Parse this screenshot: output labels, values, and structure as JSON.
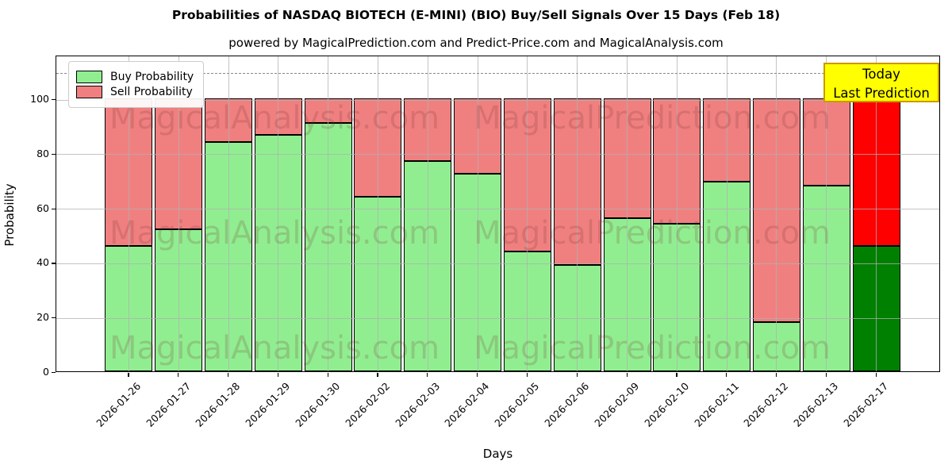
{
  "title": "Probabilities of NASDAQ BIOTECH (E-MINI) (BIO) Buy/Sell Signals Over 15 Days (Feb 18)",
  "subtitle": "powered by MagicalPrediction.com and Predict-Price.com and MagicalAnalysis.com",
  "legend": {
    "items": [
      {
        "label": "Buy Probability",
        "color": "#90EE90"
      },
      {
        "label": "Sell Probability",
        "color": "#F08080"
      }
    ]
  },
  "annotation_box": {
    "line1": "Today",
    "line2": "Last Prediction",
    "bg": "#FFFF00",
    "border": "#CC9900"
  },
  "watermarks": {
    "left_text": "MagicalAnalysis.com",
    "right_text": "MagicalPrediction.com"
  },
  "axes": {
    "ylabel": "Probability",
    "xlabel": "Days",
    "yticks": [
      0,
      20,
      40,
      60,
      80,
      100
    ],
    "ylim": [
      0,
      116
    ],
    "dashed_line_y": 110,
    "grid": true
  },
  "chart_data": {
    "type": "bar",
    "stacked": true,
    "title": "Probabilities of NASDAQ BIOTECH (E-MINI) (BIO) Buy/Sell Signals Over 15 Days (Feb 18)",
    "xlabel": "Days",
    "ylabel": "Probability",
    "ylim": [
      0,
      116
    ],
    "legend_position": "upper left",
    "categories": [
      "2026-01-26",
      "2026-01-27",
      "2026-01-28",
      "2026-01-29",
      "2026-01-30",
      "2026-02-02",
      "2026-02-03",
      "2026-02-04",
      "2026-02-05",
      "2026-02-06",
      "2026-02-09",
      "2026-02-10",
      "2026-02-11",
      "2026-02-12",
      "2026-02-13",
      "2026-02-17"
    ],
    "series": [
      {
        "name": "Buy Probability",
        "values": [
          46,
          52,
          84,
          86.5,
          91,
          64,
          77,
          72.5,
          44,
          39,
          56,
          54,
          69.5,
          18,
          68,
          46
        ]
      },
      {
        "name": "Sell Probability",
        "values": [
          54,
          48,
          16,
          13.5,
          9,
          36,
          23,
          27.5,
          56,
          61,
          44,
          46,
          30.5,
          82,
          32,
          54
        ]
      }
    ],
    "colors": {
      "buy": "#90EE90",
      "sell": "#F08080",
      "buy_last_bar": "#008000",
      "sell_last_bar": "#FF0000",
      "bar_edge": "#000000"
    }
  }
}
